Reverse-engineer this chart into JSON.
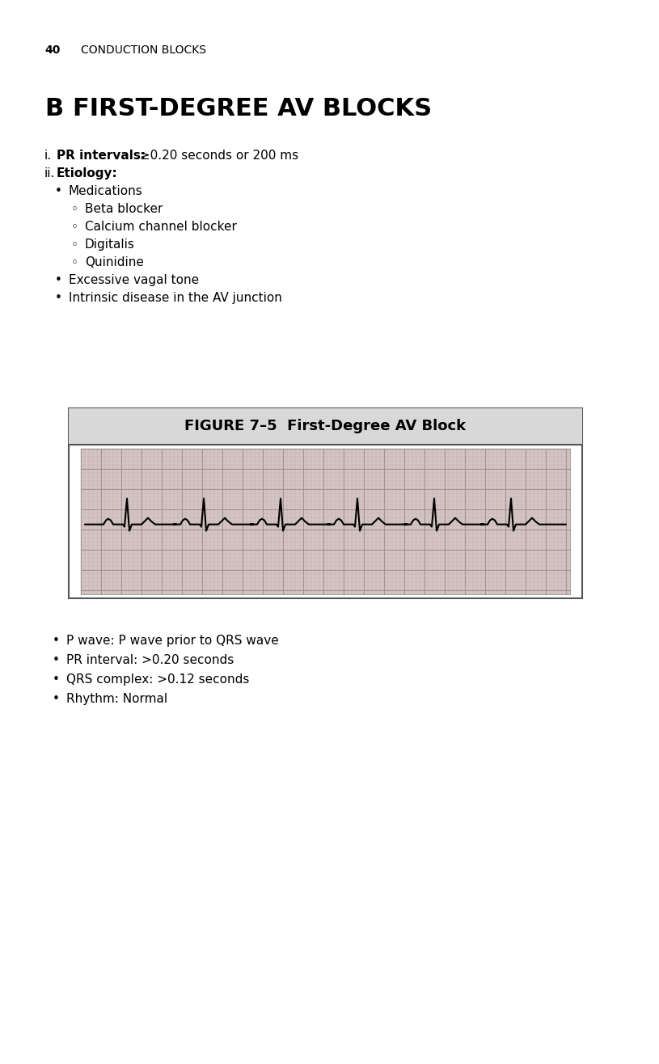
{
  "page_number": "40",
  "page_header": "CONDUCTION BLOCKS",
  "section_letter": "B",
  "section_title": "FIRST-DEGREE AV BLOCKS",
  "content_lines": [
    {
      "indent": 0,
      "prefix": "i.",
      "bold_part": "PR intervals:",
      "normal_part": " ≥0.20 seconds or 200 ms",
      "type": "numbered"
    },
    {
      "indent": 0,
      "prefix": "ii.",
      "bold_part": "Etiology:",
      "normal_part": "",
      "type": "numbered"
    },
    {
      "indent": 1,
      "prefix": "•",
      "bold_part": "",
      "normal_part": "Medications",
      "type": "bullet"
    },
    {
      "indent": 2,
      "prefix": "◦",
      "bold_part": "",
      "normal_part": "Beta blocker",
      "type": "sub_bullet"
    },
    {
      "indent": 2,
      "prefix": "◦",
      "bold_part": "",
      "normal_part": "Calcium channel blocker",
      "type": "sub_bullet"
    },
    {
      "indent": 2,
      "prefix": "◦",
      "bold_part": "",
      "normal_part": "Digitalis",
      "type": "sub_bullet"
    },
    {
      "indent": 2,
      "prefix": "◦",
      "bold_part": "",
      "normal_part": "Quinidine",
      "type": "sub_bullet"
    },
    {
      "indent": 1,
      "prefix": "•",
      "bold_part": "",
      "normal_part": "Excessive vagal tone",
      "type": "bullet"
    },
    {
      "indent": 1,
      "prefix": "•",
      "bold_part": "",
      "normal_part": "Intrinsic disease in the AV junction",
      "type": "bullet"
    }
  ],
  "figure_title": "FIGURE 7–5  First-Degree AV Block",
  "bullet_points": [
    {
      "prefix": "•",
      "text": "P wave: P wave prior to QRS wave"
    },
    {
      "prefix": "•",
      "text": "PR interval: >0.20 seconds"
    },
    {
      "prefix": "•",
      "text": "QRS complex: >0.12 seconds"
    },
    {
      "prefix": "•",
      "text": "Rhythm: Normal"
    }
  ],
  "background_color": "#ffffff",
  "ekg_grid_color_major": "#c8b8b8",
  "ekg_grid_color_minor": "#e8d8d8",
  "ekg_line_color": "#000000",
  "figure_bg": "#e8e8e8",
  "figure_border": "#555555"
}
